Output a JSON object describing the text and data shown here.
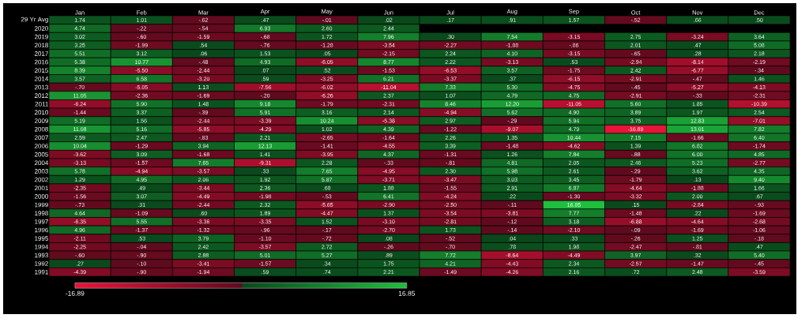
{
  "chart_data": {
    "type": "heatmap",
    "categories": [
      "Jan",
      "Feb",
      "Mar",
      "Apr",
      "May",
      "Jun",
      "Jul",
      "Aug",
      "Sep",
      "Oct",
      "Nov",
      "Dec"
    ],
    "y_categories": [
      "29 Yr Avg",
      "2020",
      "2019",
      "2018",
      "2017",
      "2016",
      "2015",
      "2014",
      "2013",
      "2012",
      "2011",
      "2010",
      "2009",
      "2008",
      "2007",
      "2006",
      "2005",
      "2004",
      "2003",
      "2002",
      "2001",
      "2000",
      "1999",
      "1998",
      "1997",
      "1996",
      "1995",
      "1994",
      "1993",
      "1992",
      "1991"
    ],
    "cells": [
      [
        1.74,
        1.01,
        -0.62,
        0.47,
        -0.01,
        0.02,
        0.17,
        0.91,
        1.57,
        -0.52,
        0.66,
        0.5
      ],
      [
        4.74,
        -0.22,
        -0.54,
        6.93,
        2.6,
        2.44,
        null,
        null,
        null,
        null,
        null,
        null
      ],
      [
        3.02,
        -0.6,
        -1.59,
        -0.68,
        1.72,
        7.96,
        0.3,
        7.54,
        -3.15,
        2.75,
        -3.24,
        3.64
      ],
      [
        3.25,
        -1.99,
        0.54,
        -0.76,
        -1.28,
        -3.54,
        -2.27,
        -1.88,
        -0.86,
        2.01,
        0.47,
        5.08
      ],
      [
        5.51,
        3.12,
        0.06,
        1.53,
        0.05,
        -2.15,
        2.24,
        4.1,
        -3.15,
        -0.65,
        0.28,
        2.18
      ],
      [
        5.38,
        10.77,
        -0.48,
        4.93,
        -6.05,
        8.77,
        2.22,
        -3.13,
        0.53,
        -2.94,
        -8.14,
        -2.19
      ],
      [
        8.39,
        -5.5,
        -2.44,
        0.07,
        0.52,
        -1.53,
        -6.53,
        3.57,
        -1.75,
        2.42,
        -6.77,
        -0.34
      ],
      [
        3.57,
        6.58,
        -3.2,
        0.59,
        -3.25,
        6.21,
        -3.37,
        0.37,
        -6.15,
        -2.91,
        -0.47,
        1.46
      ],
      [
        -0.7,
        -5.05,
        1.13,
        -7.56,
        -6.02,
        -11.04,
        7.33,
        5.3,
        -4.75,
        -0.45,
        -5.27,
        -4.13
      ],
      [
        11.05,
        -2.36,
        -1.69,
        -0.2,
        -6.26,
        2.37,
        1.07,
        4.79,
        4.75,
        -2.91,
        -0.33,
        -2.31
      ],
      [
        -6.24,
        5.9,
        1.48,
        9.18,
        -1.79,
        -2.31,
        8.46,
        12.2,
        -11.05,
        5.6,
        1.85,
        -10.39
      ],
      [
        -1.44,
        3.37,
        -0.39,
        5.91,
        3.16,
        2.14,
        -4.94,
        5.62,
        4.9,
        3.89,
        1.97,
        2.54
      ],
      [
        5.19,
        1.56,
        -2.44,
        -3.39,
        10.24,
        -5.38,
        2.97,
        -0.29,
        5.94,
        3.75,
        12.83,
        -7.01
      ],
      [
        11.08,
        5.16,
        -5.85,
        -4.29,
        1.02,
        4.39,
        -1.22,
        -9.07,
        4.79,
        -16.89,
        13.01,
        7.82
      ],
      [
        2.59,
        2.47,
        -0.83,
        2.21,
        -2.65,
        -1.64,
        2.26,
        1.35,
        10.44,
        7.15,
        -1.66,
        6.4
      ],
      [
        10.04,
        -1.29,
        3.94,
        12.13,
        -1.41,
        -4.55,
        3.39,
        -1.48,
        -4.62,
        1.39,
        6.82,
        -1.74
      ],
      [
        -3.62,
        3.09,
        -1.68,
        1.41,
        -3.95,
        4.37,
        -1.31,
        1.26,
        7.84,
        -0.88,
        6.0,
        4.85
      ],
      [
        -3.13,
        -1.57,
        7.65,
        -9.31,
        2.28,
        -0.33,
        -0.81,
        4.81,
        2.05,
        2.46,
        5.23,
        -2.77
      ],
      [
        5.78,
        -4.94,
        -3.57,
        0.33,
        7.65,
        -4.95,
        2.3,
        5.98,
        2.61,
        -0.29,
        3.62,
        4.35
      ],
      [
        1.29,
        4.95,
        2.06,
        1.92,
        5.87,
        -3.71,
        -3.47,
        3.03,
        3.45,
        -1.79,
        0.13,
        9.4
      ],
      [
        -2.35,
        0.49,
        -3.44,
        2.36,
        0.68,
        1.88,
        -1.55,
        2.91,
        6.87,
        -4.64,
        -1.88,
        1.66
      ],
      [
        -1.56,
        3.07,
        -4.49,
        -1.98,
        -0.53,
        6.41,
        -4.24,
        0.22,
        -1.3,
        -3.32,
        2.0,
        0.67
      ],
      [
        -0.73,
        0.31,
        -2.44,
        2.32,
        -5.65,
        -2.9,
        -2.5,
        -0.11,
        16.85,
        0.15,
        -2.84,
        -0.93
      ],
      [
        4.64,
        -1.09,
        0.6,
        1.89,
        -4.47,
        1.37,
        -3.54,
        -3.81,
        7.77,
        -1.48,
        0.22,
        -1.69
      ],
      [
        -6.35,
        5.55,
        -3.36,
        -3.35,
        1.52,
        -3.1,
        -2.81,
        -0.12,
        3.18,
        -6.88,
        -4.64,
        -2.68
      ],
      [
        4.96,
        -1.37,
        -1.32,
        -0.96,
        -0.17,
        -2.7,
        1.73,
        -0.14,
        -2.1,
        -0.09,
        -1.69,
        -1.06
      ],
      [
        -2.11,
        0.53,
        3.79,
        -1.1,
        -0.72,
        0.08,
        -0.52,
        0.04,
        0.33,
        -0.26,
        1.25,
        -0.18
      ],
      [
        -2.25,
        -0.04,
        2.42,
        -3.57,
        2.72,
        -0.26,
        -0.7,
        0.78,
        1.98,
        -2.47,
        -0.81,
        0.47
      ],
      [
        -0.6,
        -0.9,
        2.88,
        5.01,
        5.27,
        0.89,
        7.72,
        -8.64,
        -4.49,
        3.97,
        0.32,
        5.4
      ],
      [
        0.27,
        -0.1,
        -3.41,
        -1.57,
        0.34,
        1.75,
        4.21,
        -4.43,
        2.34,
        -2.57,
        -1.47,
        -0.45
      ],
      [
        -4.39,
        -0.9,
        -1.94,
        0.59,
        0.74,
        2.21,
        -1.49,
        -4.26,
        2.16,
        0.72,
        2.48,
        -3.59
      ]
    ],
    "cell_labels": [
      [
        "1.74",
        "1.01",
        "-.62",
        ".47",
        "-.01",
        ".02",
        ".17",
        ".91",
        "1.57",
        "-.52",
        ".66",
        ".50"
      ],
      [
        "4.74",
        "-.22",
        "-.54",
        "6.93",
        "2.60",
        "2.44",
        null,
        null,
        null,
        null,
        null,
        null
      ],
      [
        "3.02",
        "-.60",
        "-1.59",
        "-.68",
        "1.72",
        "7.96",
        ".30",
        "7.54",
        "-3.15",
        "2.75",
        "-3.24",
        "3.64"
      ],
      [
        "3.25",
        "-1.99",
        ".54",
        "-.76",
        "-1.28",
        "-3.54",
        "-2.27",
        "-1.88",
        "-.86",
        "2.01",
        ".47",
        "5.08"
      ],
      [
        "5.51",
        "3.12",
        ".06",
        "1.53",
        ".05",
        "-2.15",
        "2.24",
        "4.10",
        "-3.15",
        "-.65",
        ".28",
        "2.18"
      ],
      [
        "5.38",
        "10.77",
        "-.48",
        "4.93",
        "-6.05",
        "8.77",
        "2.22",
        "-3.13",
        ".53",
        "-2.94",
        "-8.14",
        "-2.19"
      ],
      [
        "8.39",
        "-5.50",
        "-2.44",
        ".07",
        ".52",
        "-1.53",
        "-6.53",
        "3.57",
        "-1.75",
        "2.42",
        "-6.77",
        "-.34"
      ],
      [
        "3.57",
        "6.58",
        "-3.20",
        ".59",
        "-3.25",
        "6.21",
        "-3.37",
        ".37",
        "-6.15",
        "-2.91",
        "-.47",
        "1.46"
      ],
      [
        "-.70",
        "-5.05",
        "1.13",
        "-7.56",
        "-6.02",
        "-11.04",
        "7.33",
        "5.30",
        "-4.75",
        "-.45",
        "-5.27",
        "-4.13"
      ],
      [
        "11.05",
        "-2.36",
        "-1.69",
        "-.20",
        "-6.26",
        "2.37",
        "1.07",
        "4.79",
        "4.75",
        "-2.91",
        "-.33",
        "-2.31"
      ],
      [
        "-6.24",
        "5.90",
        "1.48",
        "9.18",
        "-1.79",
        "-2.31",
        "8.46",
        "12.20",
        "-11.05",
        "5.60",
        "1.85",
        "-10.39"
      ],
      [
        "-1.44",
        "3.37",
        "-.39",
        "5.91",
        "3.16",
        "2.14",
        "-4.94",
        "5.62",
        "4.90",
        "3.89",
        "1.97",
        "2.54"
      ],
      [
        "5.19",
        "1.56",
        "-2.44",
        "-3.39",
        "10.24",
        "-5.38",
        "2.97",
        "-.29",
        "5.94",
        "3.75",
        "12.83",
        "-7.01"
      ],
      [
        "11.08",
        "5.16",
        "-5.85",
        "-4.29",
        "1.02",
        "4.39",
        "-1.22",
        "-9.07",
        "4.79",
        "-16.89",
        "13.01",
        "7.82"
      ],
      [
        "2.59",
        "2.47",
        "-.83",
        "2.21",
        "-2.65",
        "-1.64",
        "2.26",
        "1.35",
        "10.44",
        "7.15",
        "-1.66",
        "6.40"
      ],
      [
        "10.04",
        "-1.29",
        "3.94",
        "12.13",
        "-1.41",
        "-4.55",
        "3.39",
        "-1.48",
        "-4.62",
        "1.39",
        "6.82",
        "-1.74"
      ],
      [
        "-3.62",
        "3.09",
        "-1.68",
        "1.41",
        "-3.95",
        "4.37",
        "-1.31",
        "1.26",
        "7.84",
        "-.88",
        "6.00",
        "4.85"
      ],
      [
        "-3.13",
        "-1.57",
        "7.65",
        "-9.31",
        "2.28",
        "-.33",
        "-.81",
        "4.81",
        "2.05",
        "2.46",
        "5.23",
        "-2.77"
      ],
      [
        "5.78",
        "-4.94",
        "-3.57",
        ".33",
        "7.65",
        "-4.95",
        "2.30",
        "5.98",
        "2.61",
        "-.29",
        "3.62",
        "4.35"
      ],
      [
        "1.29",
        "4.95",
        "2.06",
        "1.92",
        "5.87",
        "-3.71",
        "-3.47",
        "3.03",
        "3.45",
        "-1.79",
        ".13",
        "9.40"
      ],
      [
        "-2.35",
        ".49",
        "-3.44",
        "2.36",
        ".68",
        "1.88",
        "-1.55",
        "2.91",
        "6.87",
        "-4.64",
        "-1.88",
        "1.66"
      ],
      [
        "-1.56",
        "3.07",
        "-4.49",
        "-1.98",
        "-.53",
        "6.41",
        "-4.24",
        ".22",
        "-1.30",
        "-3.32",
        "2.00",
        ".67"
      ],
      [
        "-.73",
        ".31",
        "-2.44",
        "2.32",
        "-5.65",
        "-2.90",
        "-2.50",
        "-.11",
        "16.85",
        ".15",
        "-2.84",
        "-.93"
      ],
      [
        "4.64",
        "-1.09",
        ".60",
        "1.89",
        "-4.47",
        "1.37",
        "-3.54",
        "-3.81",
        "7.77",
        "-1.48",
        ".22",
        "-1.69"
      ],
      [
        "-6.35",
        "5.55",
        "-3.36",
        "-3.35",
        "1.52",
        "-3.10",
        "-2.81",
        "-.12",
        "3.18",
        "-6.88",
        "-4.64",
        "-2.68"
      ],
      [
        "4.96",
        "-1.37",
        "-1.32",
        "-.96",
        "-.17",
        "-2.70",
        "1.73",
        "-.14",
        "-2.10",
        "-.09",
        "-1.69",
        "-1.06"
      ],
      [
        "-2.11",
        ".53",
        "3.79",
        "-1.10",
        "-.72",
        ".08",
        "-.52",
        ".04",
        ".33",
        "-.26",
        "1.25",
        "-.18"
      ],
      [
        "-2.25",
        "-.04",
        "2.42",
        "-3.57",
        "2.72",
        "-.26",
        "-.70",
        ".78",
        "1.98",
        "-2.47",
        "-.81",
        ".47"
      ],
      [
        "-.60",
        "-.90",
        "2.88",
        "5.01",
        "5.27",
        ".89",
        "7.72",
        "-8.64",
        "-4.49",
        "3.97",
        ".32",
        "5.40"
      ],
      [
        ".27",
        "-.10",
        "-3.41",
        "-1.57",
        ".34",
        "1.75",
        "4.21",
        "-4.43",
        "2.34",
        "-2.57",
        "-1.47",
        "-.45"
      ],
      [
        "-4.39",
        "-.90",
        "-1.94",
        ".59",
        ".74",
        "2.21",
        "-1.49",
        "-4.26",
        "2.16",
        ".72",
        "2.48",
        "-3.59"
      ]
    ],
    "clim": [
      -16.89,
      16.85
    ],
    "cticks": [
      {
        "value": -16.89,
        "label": "-16.89"
      },
      {
        "value": 16.85,
        "label": "16.85"
      }
    ]
  }
}
